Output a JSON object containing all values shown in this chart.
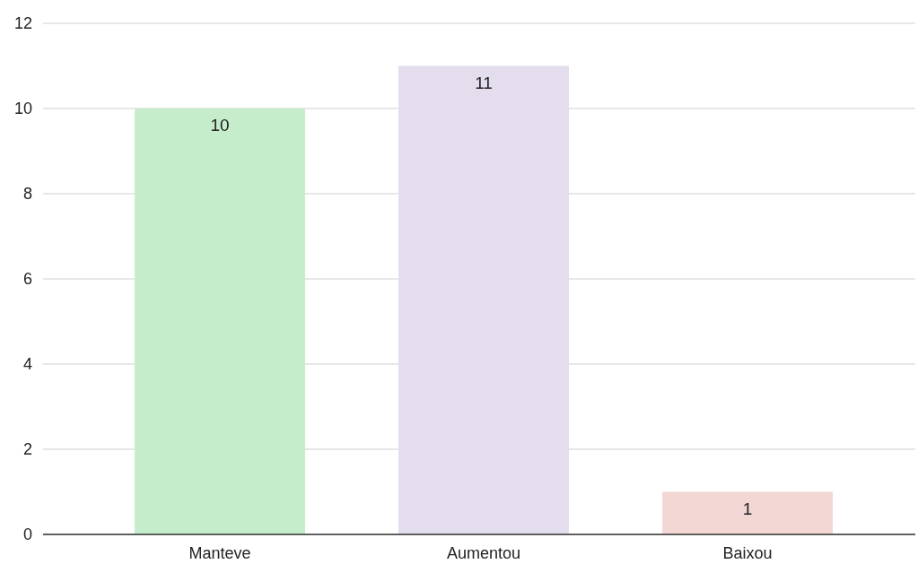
{
  "chart_data": {
    "type": "bar",
    "categories": [
      "Manteve",
      "Aumentou",
      "Baixou"
    ],
    "values": [
      10,
      11,
      1
    ],
    "colors": [
      "#c6edcb",
      "#e4dded",
      "#f2d7d5"
    ],
    "ylim": [
      0,
      12
    ],
    "yticks": [
      0,
      2,
      4,
      6,
      8,
      10,
      12
    ],
    "grid": "y",
    "data_labels": true
  }
}
